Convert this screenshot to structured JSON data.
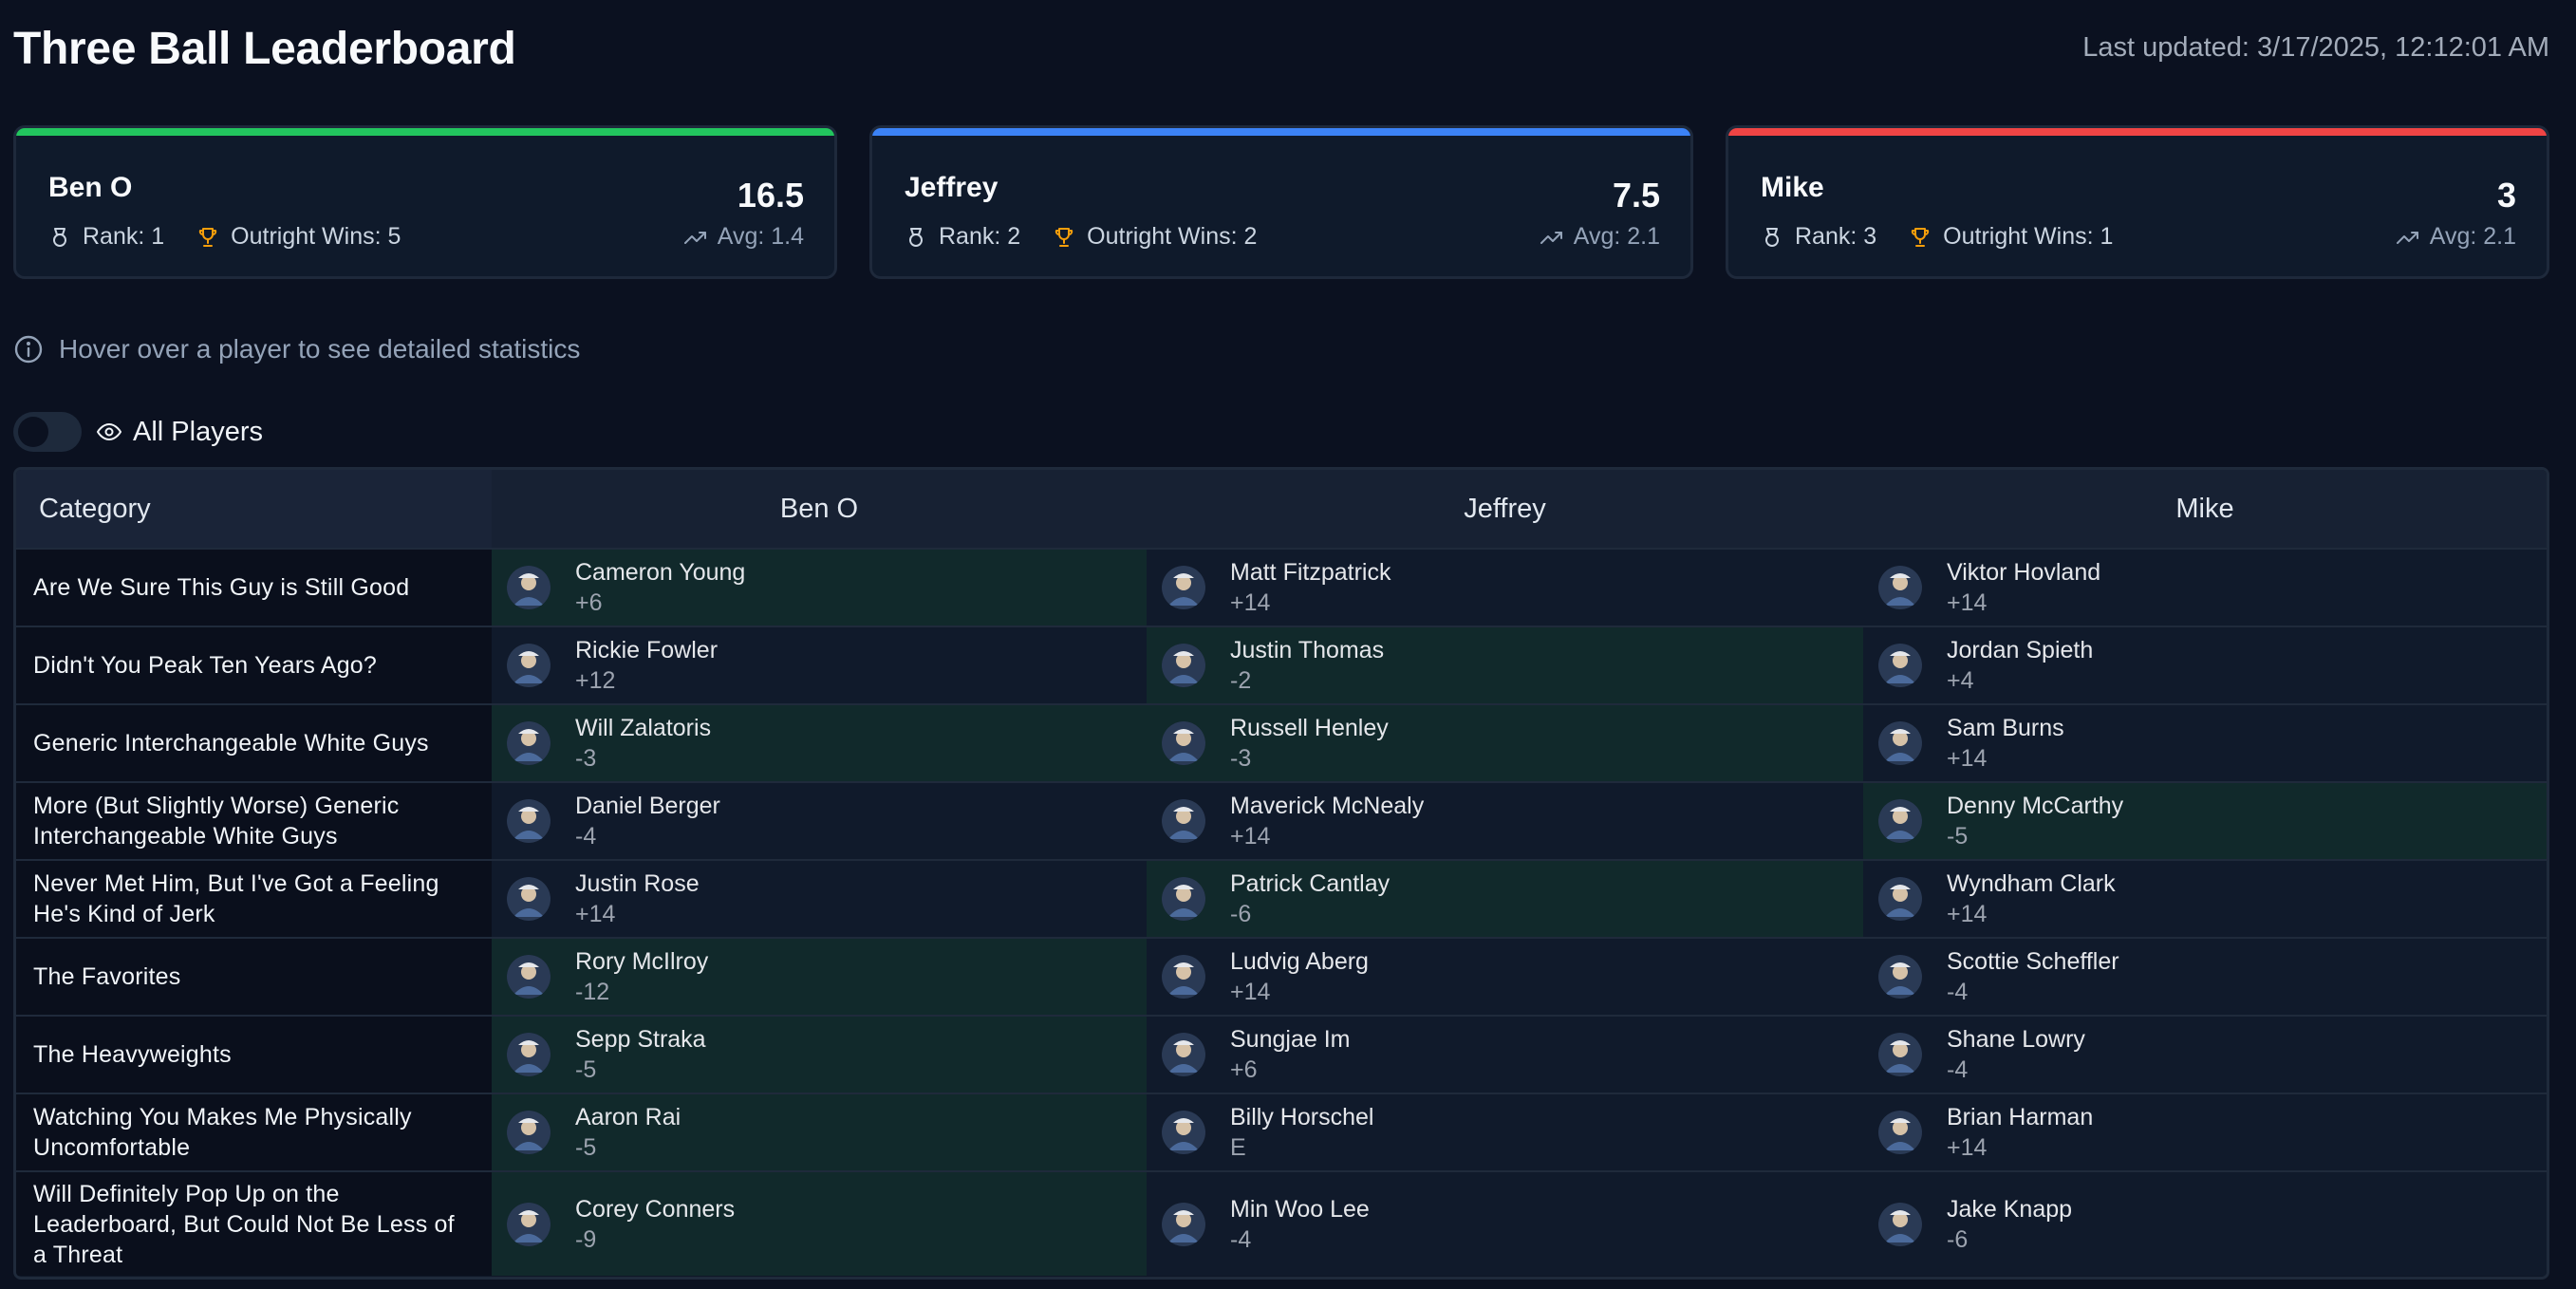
{
  "header": {
    "title": "Three Ball Leaderboard",
    "last_updated": "Last updated: 3/17/2025, 12:12:01 AM"
  },
  "colors": {
    "green": "#22c55e",
    "blue": "#3b82f6",
    "red": "#ef4444",
    "gold": "#f59e0b"
  },
  "cards": [
    {
      "name": "Ben O",
      "score": "16.5",
      "rank": "Rank: 1",
      "wins": "Outright Wins: 5",
      "avg": "Avg: 1.4",
      "accent": "#22c55e"
    },
    {
      "name": "Jeffrey",
      "score": "7.5",
      "rank": "Rank: 2",
      "wins": "Outright Wins: 2",
      "avg": "Avg: 2.1",
      "accent": "#3b82f6"
    },
    {
      "name": "Mike",
      "score": "3",
      "rank": "Rank: 3",
      "wins": "Outright Wins: 1",
      "avg": "Avg: 2.1",
      "accent": "#ef4444"
    }
  ],
  "hint": {
    "text": "Hover over a player to see detailed statistics",
    "icon": "info-icon"
  },
  "toggle": {
    "label": "All Players",
    "icon": "eye-icon",
    "on": false
  },
  "table": {
    "headers": [
      "Category",
      "Ben O",
      "Jeffrey",
      "Mike"
    ],
    "rows": [
      {
        "category": "Are We Sure This Guy is Still Good",
        "picks": [
          {
            "name": "Cameron Young",
            "score": "+6",
            "win": true
          },
          {
            "name": "Matt Fitzpatrick",
            "score": "+14",
            "win": false
          },
          {
            "name": "Viktor Hovland",
            "score": "+14",
            "win": false
          }
        ]
      },
      {
        "category": "Didn't You Peak Ten Years Ago?",
        "picks": [
          {
            "name": "Rickie Fowler",
            "score": "+12",
            "win": false
          },
          {
            "name": "Justin Thomas",
            "score": "-2",
            "win": true
          },
          {
            "name": "Jordan Spieth",
            "score": "+4",
            "win": false
          }
        ]
      },
      {
        "category": "Generic Interchangeable White Guys",
        "picks": [
          {
            "name": "Will Zalatoris",
            "score": "-3",
            "win": true
          },
          {
            "name": "Russell Henley",
            "score": "-3",
            "win": true
          },
          {
            "name": "Sam Burns",
            "score": "+14",
            "win": false
          }
        ]
      },
      {
        "category": "More (But Slightly Worse) Generic Interchangeable White Guys",
        "picks": [
          {
            "name": "Daniel Berger",
            "score": "-4",
            "win": false
          },
          {
            "name": "Maverick McNealy",
            "score": "+14",
            "win": false
          },
          {
            "name": "Denny McCarthy",
            "score": "-5",
            "win": true
          }
        ]
      },
      {
        "category": "Never Met Him, But I've Got a Feeling He's Kind of Jerk",
        "picks": [
          {
            "name": "Justin Rose",
            "score": "+14",
            "win": false
          },
          {
            "name": "Patrick Cantlay",
            "score": "-6",
            "win": true
          },
          {
            "name": "Wyndham Clark",
            "score": "+14",
            "win": false
          }
        ]
      },
      {
        "category": "The Favorites",
        "picks": [
          {
            "name": "Rory McIlroy",
            "score": "-12",
            "win": true
          },
          {
            "name": "Ludvig Aberg",
            "score": "+14",
            "win": false
          },
          {
            "name": "Scottie Scheffler",
            "score": "-4",
            "win": false
          }
        ]
      },
      {
        "category": "The Heavyweights",
        "picks": [
          {
            "name": "Sepp Straka",
            "score": "-5",
            "win": true
          },
          {
            "name": "Sungjae Im",
            "score": "+6",
            "win": false
          },
          {
            "name": "Shane Lowry",
            "score": "-4",
            "win": false
          }
        ]
      },
      {
        "category": "Watching You Makes Me Physically Uncomfortable",
        "picks": [
          {
            "name": "Aaron Rai",
            "score": "-5",
            "win": true
          },
          {
            "name": "Billy Horschel",
            "score": "E",
            "win": false
          },
          {
            "name": "Brian Harman",
            "score": "+14",
            "win": false
          }
        ]
      },
      {
        "category": "Will Definitely Pop Up on the Leaderboard, But Could Not Be Less of a Threat",
        "picks": [
          {
            "name": "Corey Conners",
            "score": "-9",
            "win": true
          },
          {
            "name": "Min Woo Lee",
            "score": "-4",
            "win": false
          },
          {
            "name": "Jake Knapp",
            "score": "-6",
            "win": false
          }
        ]
      }
    ]
  }
}
